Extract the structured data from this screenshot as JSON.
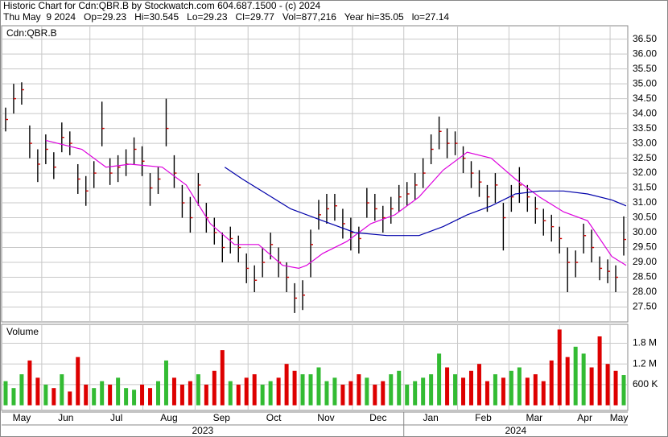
{
  "chart_data": {
    "type": "ohlc",
    "header": [
      "Historic Chart for Cdn:QBR.B by Stockwatch.com 604.687.1500 - (c) 2024",
      "Thu May  9 2024   Op=29.23   Hi=30.545   Lo=29.23   Cl=29.77   Vol=877,216   Year hi=35.05   lo=27.14"
    ],
    "symbol_label": "Cdn:QBR.B",
    "volume_label": "Volume",
    "xlim": [
      -0.5,
      77.5
    ],
    "xticks": [
      {
        "value": -2.3,
        "label": "May"
      },
      {
        "value": 4.5,
        "label": "Jun"
      },
      {
        "value": 10.5,
        "label": "Jul"
      },
      {
        "value": 17.1,
        "label": "Aug"
      },
      {
        "value": 23.6,
        "label": "Sep"
      },
      {
        "value": 30.2,
        "label": "Oct"
      },
      {
        "value": 36.6,
        "label": "Nov"
      },
      {
        "value": 43.2,
        "label": "Dec"
      },
      {
        "value": 49.6,
        "label": "Jan"
      },
      {
        "value": 56.3,
        "label": "Feb"
      },
      {
        "value": 62.7,
        "label": "Mar"
      },
      {
        "value": 69,
        "label": "Apr"
      },
      {
        "value": 75.3,
        "label": "May"
      }
    ],
    "years": [
      {
        "value": 49.6,
        "label": "2023"
      },
      {
        "label": "2024"
      }
    ],
    "ylim": [
      27,
      36.95
    ],
    "yticks": [
      {
        "value": 27.5,
        "label": "27.50"
      },
      {
        "value": 28,
        "label": "28.00"
      },
      {
        "value": 28.5,
        "label": "28.50"
      },
      {
        "value": 29,
        "label": "29.00"
      },
      {
        "value": 29.5,
        "label": "29.50"
      },
      {
        "value": 30,
        "label": "30.00"
      },
      {
        "value": 30.5,
        "label": "30.50"
      },
      {
        "value": 31,
        "label": "31.00"
      },
      {
        "value": 31.5,
        "label": "31.50"
      },
      {
        "value": 32,
        "label": "32.00"
      },
      {
        "value": 32.5,
        "label": "32.50"
      },
      {
        "value": 33,
        "label": "33.00"
      },
      {
        "value": 33.5,
        "label": "33.50"
      },
      {
        "value": 34,
        "label": "34.00"
      },
      {
        "value": 34.5,
        "label": "34.50"
      },
      {
        "value": 35,
        "label": "35.00"
      },
      {
        "value": 35.5,
        "label": "35.50"
      },
      {
        "value": 36,
        "label": "36.00"
      },
      {
        "value": 36.5,
        "label": "36.50"
      }
    ],
    "grid": true,
    "bar_color": "#000000",
    "close_color": "#cc0000",
    "high": [
      34.2,
      35.0,
      35.05,
      33.6,
      32.8,
      33.3,
      32.7,
      33.7,
      33.4,
      32.3,
      31.9,
      32.4,
      34.4,
      32.5,
      32.6,
      32.8,
      33.2,
      32.9,
      32.0,
      32.2,
      34.5,
      32.6,
      31.6,
      31.2,
      32.0,
      31.0,
      30.5,
      30.0,
      30.2,
      29.9,
      29.3,
      28.9,
      29.5,
      30.0,
      29.5,
      29.0,
      28.3,
      28.4,
      30.1,
      31.1,
      31.3,
      31.3,
      30.8,
      30.5,
      30.2,
      31.5,
      31.3,
      30.9,
      31.2,
      31.6,
      31.7,
      32.0,
      32.5,
      33.3,
      33.9,
      33.5,
      33.4,
      32.9,
      32.4,
      32.1,
      31.6,
      32.0,
      31.0,
      31.6,
      32.2,
      31.6,
      31.2,
      30.8,
      30.6,
      30.2,
      29.5,
      29.4,
      30.3,
      30.1,
      29.2,
      29.1,
      28.9,
      30.545
    ],
    "low": [
      33.4,
      34.0,
      34.3,
      32.5,
      31.7,
      32.3,
      31.8,
      32.7,
      32.6,
      31.3,
      30.9,
      31.5,
      32.9,
      31.6,
      31.7,
      31.9,
      32.3,
      31.9,
      30.9,
      31.3,
      32.9,
      31.5,
      30.5,
      30.0,
      30.9,
      30.0,
      29.6,
      29.0,
      29.3,
      29.0,
      28.3,
      28.0,
      28.5,
      29.1,
      28.5,
      28.0,
      27.3,
      27.4,
      28.5,
      30.1,
      30.3,
      30.4,
      29.8,
      29.4,
      29.3,
      30.5,
      30.4,
      30.0,
      30.3,
      30.7,
      30.9,
      31.1,
      31.5,
      32.3,
      32.8,
      32.5,
      32.6,
      32.0,
      31.5,
      31.2,
      30.7,
      31.0,
      29.4,
      30.7,
      31.0,
      30.7,
      30.3,
      29.9,
      29.7,
      29.3,
      28.0,
      28.5,
      29.3,
      29.0,
      28.4,
      28.3,
      28.0,
      29.23
    ],
    "close": [
      33.8,
      34.5,
      34.8,
      33.0,
      32.3,
      32.8,
      32.2,
      33.2,
      33.0,
      31.8,
      31.4,
      32.0,
      33.5,
      32.0,
      32.2,
      32.3,
      32.8,
      32.4,
      31.5,
      31.8,
      33.5,
      32.0,
      31.0,
      30.5,
      31.6,
      30.5,
      30.0,
      29.5,
      29.8,
      29.5,
      28.8,
      28.4,
      29.0,
      29.6,
      29.0,
      28.5,
      27.8,
      27.9,
      29.6,
      30.6,
      30.8,
      30.9,
      30.3,
      30.0,
      29.8,
      31.0,
      30.8,
      30.5,
      30.8,
      31.2,
      31.3,
      31.6,
      32.0,
      32.8,
      33.4,
      33.0,
      33.0,
      32.5,
      32.0,
      31.7,
      31.2,
      31.6,
      30.5,
      31.2,
      31.6,
      31.2,
      30.8,
      30.4,
      30.2,
      29.8,
      29.0,
      29.0,
      29.9,
      29.5,
      28.8,
      28.7,
      28.5,
      29.77
    ],
    "moving_averages": [
      {
        "color": "#dd00dd",
        "x": [
          5,
          9.5,
          12.5,
          15.5,
          19.5,
          22.5,
          25.5,
          28.5,
          31.5,
          34.5,
          36.5,
          37.5,
          39.5,
          42.5,
          45.5,
          48.5,
          51.5,
          54.5,
          57.5,
          60.5,
          63.5,
          66.5,
          69.5,
          72.5,
          75.5,
          77.3
        ],
        "values": [
          33.1,
          32.8,
          32.2,
          32.3,
          32.2,
          31.6,
          30.3,
          29.6,
          29.6,
          28.9,
          28.8,
          28.9,
          29.3,
          29.7,
          30.3,
          30.6,
          31.2,
          32.1,
          32.7,
          32.5,
          31.8,
          31.2,
          30.7,
          30.4,
          29.2,
          28.9
        ]
      },
      {
        "color": "#0000aa",
        "x": [
          27.3,
          29.5,
          32.5,
          35.5,
          39.5,
          43.5,
          47.5,
          51.5,
          54.5,
          57.5,
          60.5,
          63.5,
          66.5,
          69.5,
          72.5,
          75.5,
          77.3
        ],
        "values": [
          32.2,
          31.8,
          31.3,
          30.8,
          30.4,
          30.0,
          29.9,
          29.9,
          30.2,
          30.6,
          30.9,
          31.3,
          31.4,
          31.4,
          31.3,
          31.1,
          30.9
        ]
      }
    ],
    "volume": {
      "up_color": "#33bb33",
      "down_color": "#dd0000",
      "values": [
        700000,
        500000,
        900000,
        1300000,
        800000,
        600000,
        500000,
        900000,
        400000,
        1400000,
        600000,
        500000,
        700000,
        600000,
        800000,
        500000,
        450000,
        600000,
        500000,
        700000,
        1300000,
        800000,
        600000,
        700000,
        900000,
        600000,
        1000000,
        1600000,
        700000,
        600000,
        800000,
        900000,
        600000,
        700000,
        800000,
        1200000,
        1000000,
        900000,
        900000,
        1100000,
        700000,
        800000,
        600000,
        700000,
        900000,
        800000,
        600000,
        700000,
        900000,
        1000000,
        600000,
        700000,
        800000,
        900000,
        1500000,
        1100000,
        900000,
        800000,
        1000000,
        1200000,
        700000,
        900000,
        800000,
        1000000,
        1100000,
        800000,
        900000,
        700000,
        1300000,
        2200000,
        1400000,
        1700000,
        1500000,
        1100000,
        2000000,
        1200000,
        1000000,
        877216
      ],
      "ylim": [
        -150000,
        2350000
      ],
      "yticks": [
        {
          "value": 600000,
          "label": "600 K"
        },
        {
          "value": 1200000,
          "label": "1.2 M"
        },
        {
          "value": 1800000,
          "label": "1.8 M"
        }
      ]
    }
  }
}
